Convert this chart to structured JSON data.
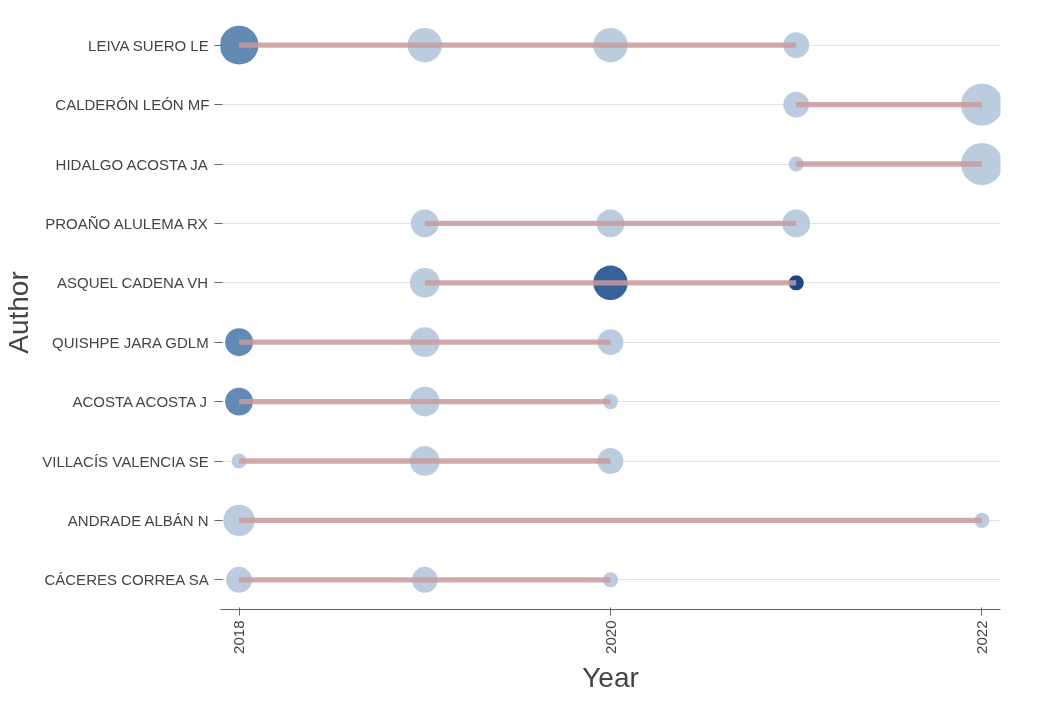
{
  "chart_data": {
    "type": "bar",
    "orientation": "horizontal",
    "xlabel": "Year",
    "ylabel": "Author",
    "grid": "y",
    "categories": [
      "LEIVA SUERO LE",
      "CALDERÓN LEÓN MF",
      "HIDALGO ACOSTA JA",
      "PROAÑO ALULEMA RX",
      "ASQUEL CADENA VH",
      "QUISHPE JARA GDLM",
      "ACOSTA ACOSTA J",
      "VILLACÍS VALENCIA SE",
      "ANDRADE ALBÁN N",
      "CÁCERES CORREA SA"
    ],
    "xlim": [
      2017.9,
      2022.1
    ],
    "xticks": [
      2018,
      2020,
      2022
    ],
    "series": [
      {
        "color": "#c99a9e",
        "base": [
          2018,
          2021,
          2021,
          2019,
          2019,
          2018,
          2018,
          2018,
          2018,
          2018
        ],
        "values": [
          3,
          1,
          1,
          2,
          2,
          2,
          2,
          2,
          4,
          2
        ]
      },
      {
        "type": "bubble",
        "values": [
          2018,
          null,
          null,
          null,
          null,
          2018,
          2018,
          2018,
          2018,
          2018
        ],
        "sizes": [
          0.85,
          null,
          null,
          null,
          null,
          0.44,
          0.44,
          0.13,
          0.56,
          0.38
        ],
        "colors": [
          "#5b84b1",
          null,
          null,
          null,
          null,
          "#5b84b1",
          "#5b84b1",
          "#b7c9dd",
          "#b7c9dd",
          "#b7c9dd"
        ]
      },
      {
        "type": "bubble",
        "values": [
          2019,
          null,
          null,
          2019,
          2019,
          2019,
          2019,
          2019,
          null,
          2019
        ],
        "sizes": [
          0.67,
          null,
          null,
          0.44,
          0.5,
          0.5,
          0.5,
          0.5,
          null,
          0.38
        ],
        "colors": [
          "#b7c9dd",
          null,
          null,
          "#b7c9dd",
          "#b7c9dd",
          "#b7c9dd",
          "#b7c9dd",
          "#b7c9dd",
          null,
          "#b7c9dd"
        ]
      },
      {
        "type": "bubble",
        "values": [
          2020,
          null,
          null,
          2020,
          2020,
          2020,
          2020,
          2020,
          null,
          2020
        ],
        "sizes": [
          0.67,
          null,
          null,
          0.44,
          0.67,
          0.38,
          0.13,
          0.38,
          null,
          0.13
        ],
        "colors": [
          "#b7c9dd",
          null,
          null,
          "#b7c9dd",
          "#2a5a94",
          "#b7c9dd",
          "#b7c9dd",
          "#b7c9dd",
          null,
          "#b7c9dd"
        ]
      },
      {
        "type": "bubble",
        "values": [
          2021,
          2021,
          2021,
          2021,
          2021,
          null,
          null,
          null,
          null,
          null
        ],
        "sizes": [
          0.38,
          0.38,
          0.13,
          0.44,
          0.13,
          null,
          null,
          null,
          null,
          null
        ],
        "colors": [
          "#b7c9dd",
          "#b7c9dd",
          "#b7c9dd",
          "#b7c9dd",
          "#0d3e80",
          null,
          null,
          null,
          null,
          null
        ]
      },
      {
        "type": "bubble",
        "values": [
          null,
          2022,
          2022,
          null,
          null,
          null,
          null,
          null,
          2022,
          null
        ],
        "sizes": [
          null,
          1,
          1,
          null,
          null,
          null,
          null,
          null,
          0.13,
          null
        ],
        "colors": [
          null,
          "#b7c9dd",
          "#b7c9dd",
          null,
          null,
          null,
          null,
          null,
          "#b7c9dd",
          null
        ]
      }
    ]
  }
}
